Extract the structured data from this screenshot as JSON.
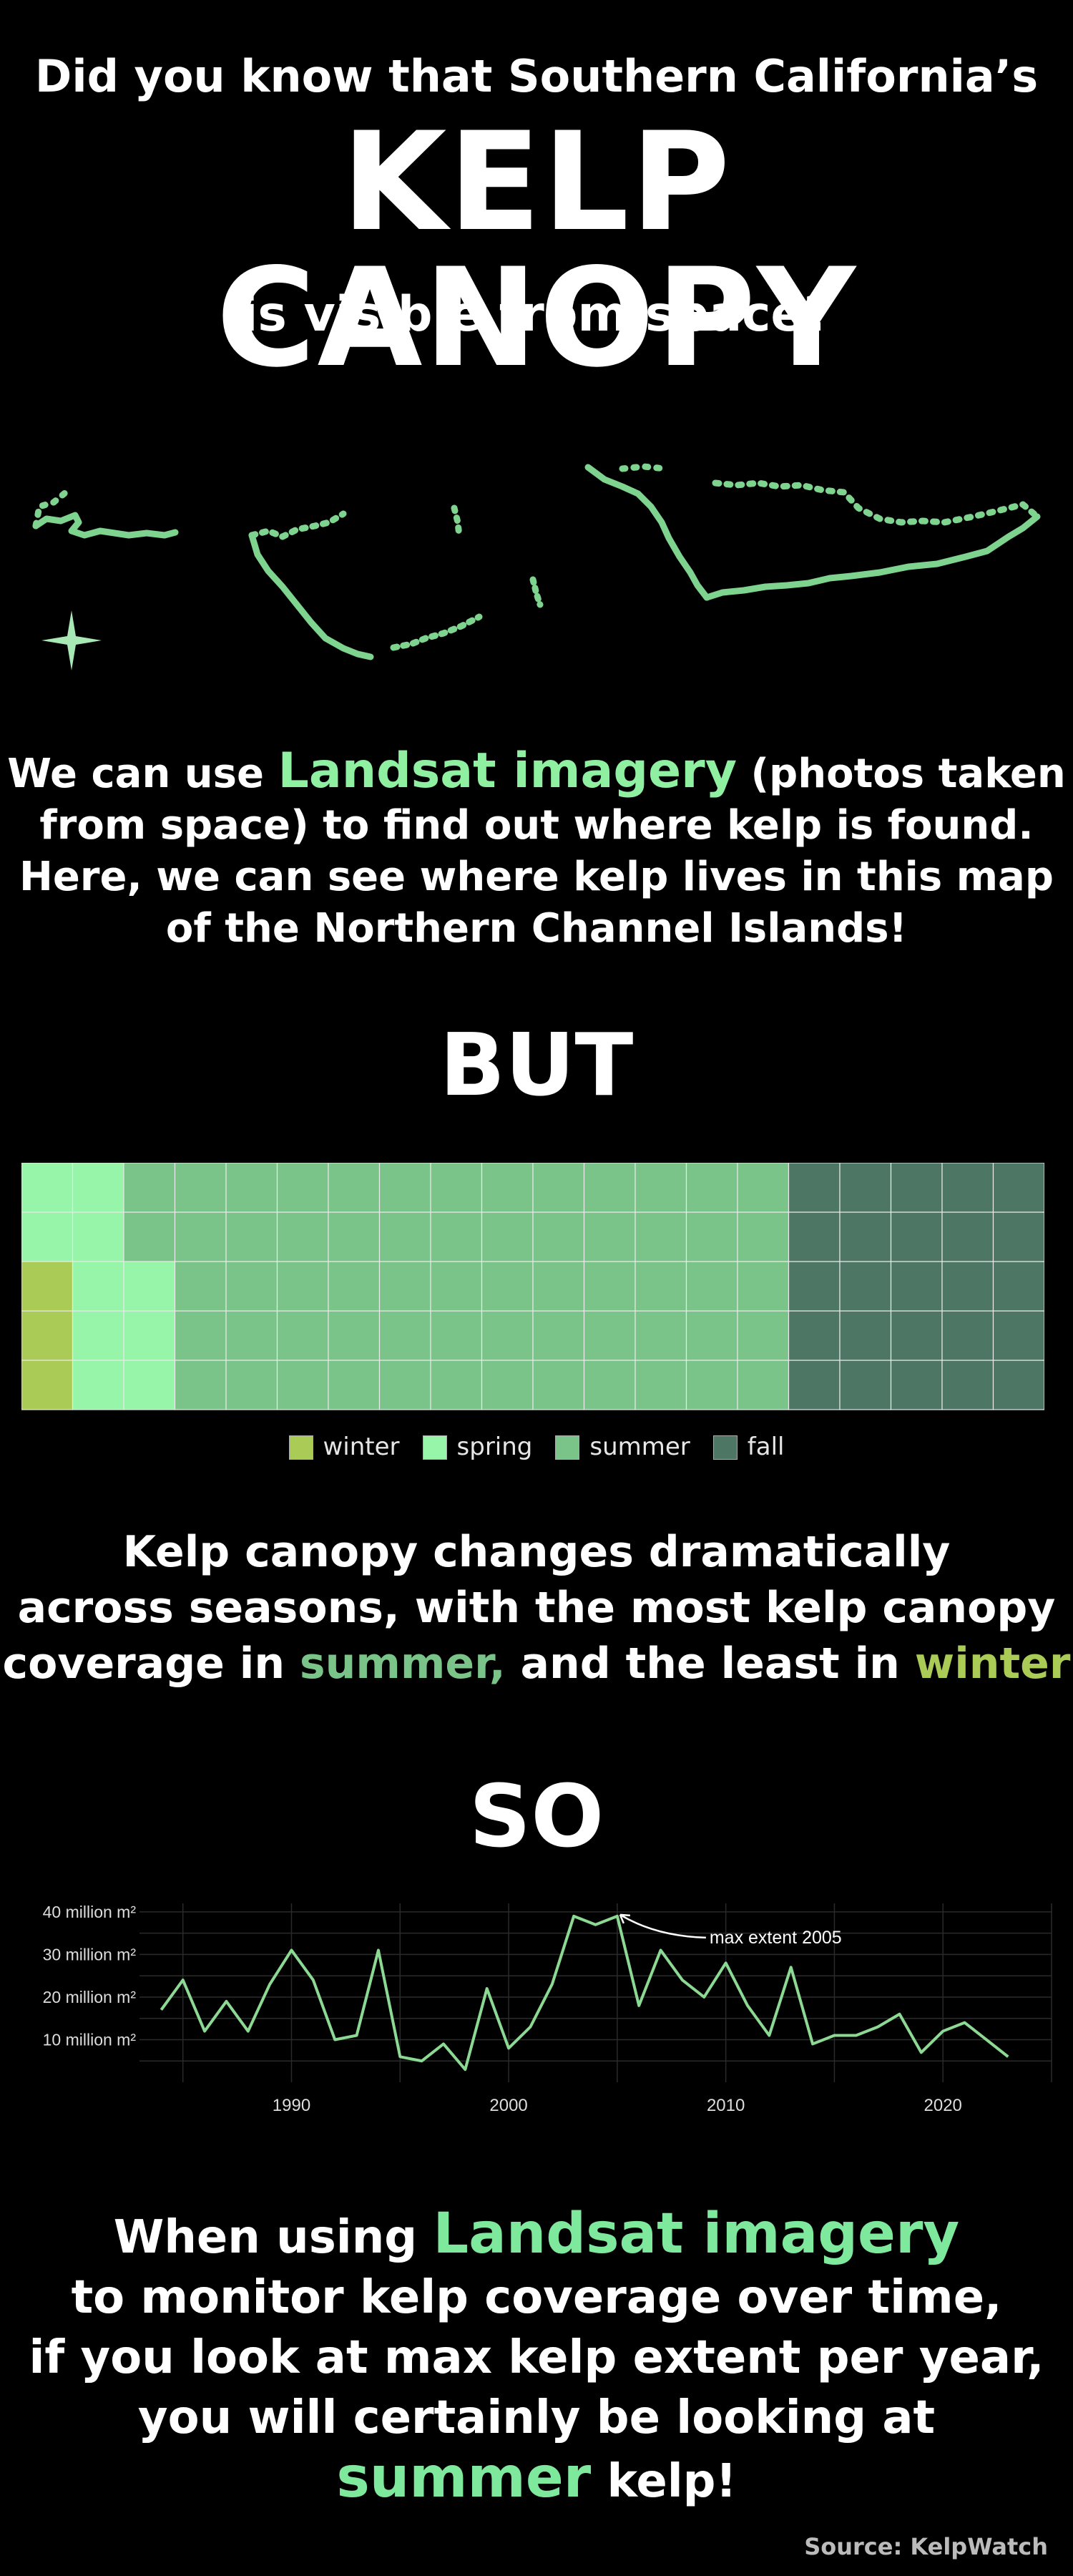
{
  "header": {
    "intro": "Did you know that Southern California’s",
    "title": "KELP CANOPY",
    "intro_tail": "is visible from space?"
  },
  "map_section": {
    "compass_icon": "four-point-star-icon",
    "kelp_color": "#7ed38f"
  },
  "landsat_paragraph": {
    "lead": "We can use ",
    "highlight": "Landsat imagery",
    "rest_line1": " (photos taken",
    "line2": "from space) to find out where kelp is found.",
    "line3": "Here, we can see where kelp lives in this map",
    "line4": "of the Northern Channel Islands!"
  },
  "but_heading": "BUT",
  "season_paragraph": {
    "line1": "Kelp canopy changes dramatically",
    "line2": "across seasons, with the most kelp canopy",
    "line3_lead": "coverage in ",
    "line3_summer": "summer,",
    "line3_mid": " and the least in ",
    "line3_winter": "winter"
  },
  "so_heading": "SO",
  "final_paragraph": {
    "line1_lead": "When using ",
    "line1_highlight": "Landsat imagery",
    "line2": "to monitor kelp coverage over time,",
    "line3": "if you look at max kelp extent per year,",
    "line4": "you will certainly be looking at",
    "line5_highlight": "summer",
    "line5_rest": " kelp!"
  },
  "source": "Source: KelpWatch",
  "chart_data": [
    {
      "type": "waffle",
      "rows": 5,
      "columns": 20,
      "legend_placement": "bottom-center",
      "series": [
        {
          "name": "winter",
          "color": "#aacb55",
          "cells": 3
        },
        {
          "name": "spring",
          "color": "#97f5a9",
          "cells": 10
        },
        {
          "name": "summer",
          "color": "#7ac48a",
          "cells": 62
        },
        {
          "name": "fall",
          "color": "#4d7664",
          "cells": 25
        }
      ]
    },
    {
      "type": "line",
      "line_color": "#8cd993",
      "x": [
        1984,
        1985,
        1986,
        1987,
        1988,
        1989,
        1990,
        1991,
        1992,
        1993,
        1994,
        1995,
        1996,
        1997,
        1998,
        1999,
        2000,
        2001,
        2002,
        2003,
        2004,
        2005,
        2006,
        2007,
        2008,
        2009,
        2010,
        2011,
        2012,
        2013,
        2014,
        2015,
        2016,
        2017,
        2018,
        2019,
        2020,
        2021,
        2022,
        2023
      ],
      "y": [
        17,
        24,
        12,
        19,
        12,
        23,
        31,
        24,
        10,
        11,
        31,
        6,
        5,
        9,
        3,
        22,
        8,
        13,
        23,
        39,
        37,
        39,
        18,
        31,
        24,
        20,
        28,
        18,
        11,
        27,
        9,
        11,
        11,
        13,
        16,
        7,
        12,
        14,
        10,
        6
      ],
      "x_ticks": [
        1990,
        2000,
        2010,
        2020
      ],
      "y_ticks": [
        "10 million m²",
        "20 million m²",
        "30 million m²",
        "40 million m²"
      ],
      "y_tick_values": [
        10,
        20,
        30,
        40
      ],
      "xlim": [
        1983,
        2025
      ],
      "ylim": [
        0,
        42
      ],
      "grid": true,
      "annotations": [
        {
          "text": "max extent 2005",
          "x": 2005,
          "y": 39
        }
      ]
    }
  ]
}
